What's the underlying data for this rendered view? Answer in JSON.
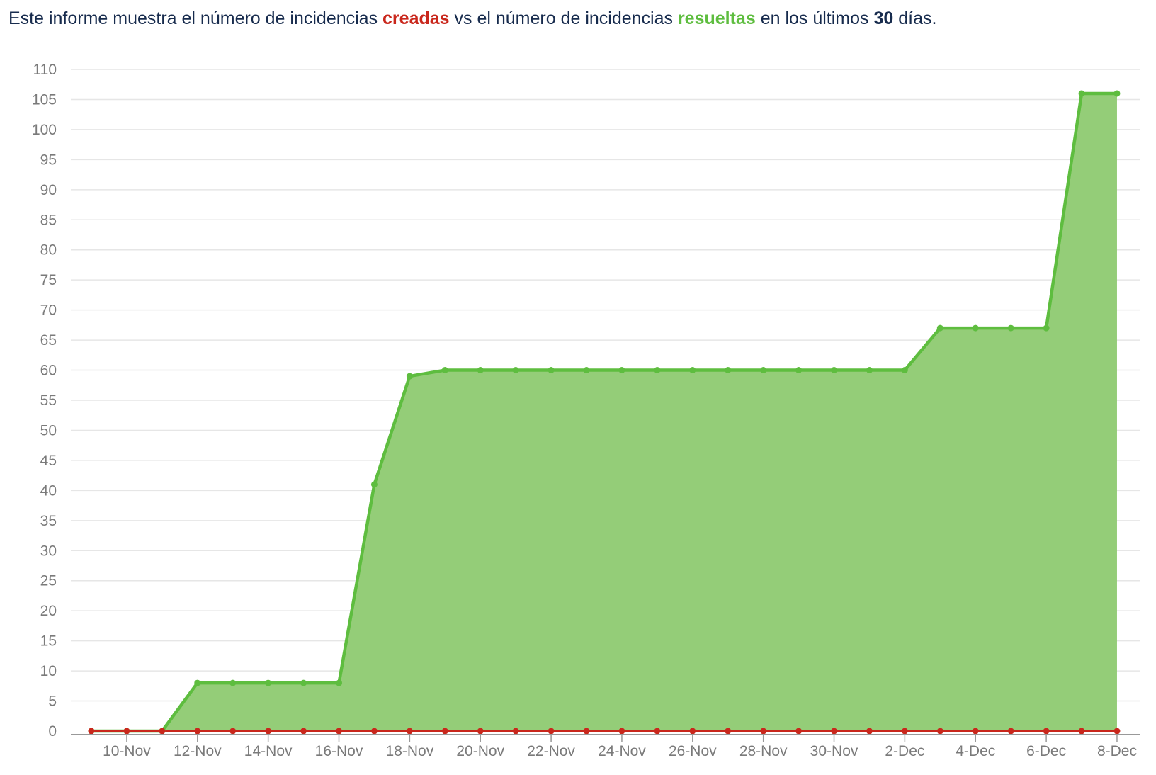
{
  "header": {
    "part1": "Este informe muestra el número de incidencias ",
    "created_word": "creadas",
    "part2": " vs el número de incidencias ",
    "resolved_word": "resueltas",
    "part3": " en los últimos ",
    "days": "30",
    "part4": " días."
  },
  "colors": {
    "created": "#c9271c",
    "resolved_line": "#5ebd3f",
    "resolved_fill": "#94cd78",
    "grid": "#e6e6e6",
    "axis": "#999999",
    "tick_text": "#7a7a7a"
  },
  "chart_data": {
    "type": "area",
    "title": "",
    "xlabel": "",
    "ylabel": "",
    "ylim": [
      0,
      110
    ],
    "y_ticks": [
      0,
      5,
      10,
      15,
      20,
      25,
      30,
      35,
      40,
      45,
      50,
      55,
      60,
      65,
      70,
      75,
      80,
      85,
      90,
      95,
      100,
      105,
      110
    ],
    "x": [
      "9-Nov",
      "10-Nov",
      "11-Nov",
      "12-Nov",
      "13-Nov",
      "14-Nov",
      "15-Nov",
      "16-Nov",
      "17-Nov",
      "18-Nov",
      "19-Nov",
      "20-Nov",
      "21-Nov",
      "22-Nov",
      "23-Nov",
      "24-Nov",
      "25-Nov",
      "26-Nov",
      "27-Nov",
      "28-Nov",
      "29-Nov",
      "30-Nov",
      "1-Dec",
      "2-Dec",
      "3-Dec",
      "4-Dec",
      "5-Dec",
      "6-Dec",
      "7-Dec",
      "8-Dec"
    ],
    "x_tick_labels": [
      "10-Nov",
      "12-Nov",
      "14-Nov",
      "16-Nov",
      "18-Nov",
      "20-Nov",
      "22-Nov",
      "24-Nov",
      "26-Nov",
      "28-Nov",
      "30-Nov",
      "2-Dec",
      "4-Dec",
      "6-Dec",
      "8-Dec"
    ],
    "series": [
      {
        "name": "resueltas",
        "values": [
          0,
          0,
          0,
          8,
          8,
          8,
          8,
          8,
          41,
          59,
          60,
          60,
          60,
          60,
          60,
          60,
          60,
          60,
          60,
          60,
          60,
          60,
          60,
          60,
          67,
          67,
          67,
          67,
          106,
          106
        ]
      },
      {
        "name": "creadas",
        "values": [
          0,
          0,
          0,
          0,
          0,
          0,
          0,
          0,
          0,
          0,
          0,
          0,
          0,
          0,
          0,
          0,
          0,
          0,
          0,
          0,
          0,
          0,
          0,
          0,
          0,
          0,
          0,
          0,
          0,
          0
        ]
      }
    ],
    "grid": true,
    "legend": "none"
  }
}
